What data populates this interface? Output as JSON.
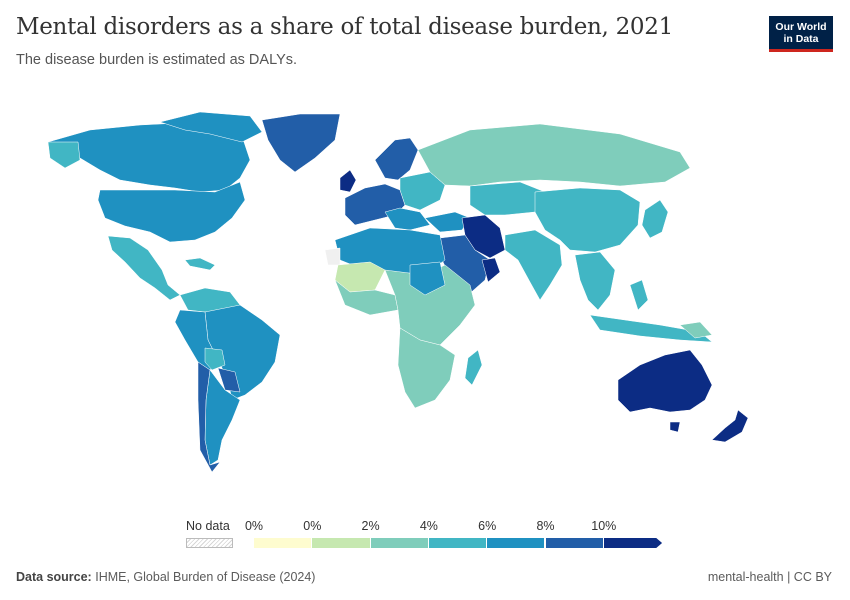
{
  "header": {
    "title": "Mental disorders as a share of total disease burden, 2021",
    "subtitle": "The disease burden is estimated as DALYs."
  },
  "logo": {
    "line1": "Our World",
    "line2": "in Data"
  },
  "legend": {
    "no_data_label": "No data",
    "ticks": [
      "0%",
      "0%",
      "2%",
      "4%",
      "6%",
      "8%",
      "10%"
    ],
    "colors": [
      "#fefccf",
      "#c6e8b0",
      "#7fcdbb",
      "#41b6c4",
      "#1f91c1",
      "#225ea8",
      "#0c2c84"
    ]
  },
  "footer": {
    "source_label": "Data source:",
    "source_text": "IHME, Global Burden of Disease (2024)",
    "right_text": "mental-health | CC BY"
  },
  "map_regions": [
    {
      "name": "Canada / USA",
      "color": "#1f91c1"
    },
    {
      "name": "Greenland",
      "color": "#225ea8"
    },
    {
      "name": "Mexico / Central America",
      "color": "#41b6c4"
    },
    {
      "name": "Brazil / South America",
      "color": "#1f91c1"
    },
    {
      "name": "Western Europe",
      "color": "#225ea8"
    },
    {
      "name": "Russia",
      "color": "#7fcdbb"
    },
    {
      "name": "Iran",
      "color": "#0c2c84"
    },
    {
      "name": "China / Central Asia",
      "color": "#41b6c4"
    },
    {
      "name": "North Africa",
      "color": "#1f91c1"
    },
    {
      "name": "Sahel",
      "color": "#c6e8b0"
    },
    {
      "name": "Sub-Saharan Africa",
      "color": "#7fcdbb"
    },
    {
      "name": "Australia",
      "color": "#0c2c84"
    },
    {
      "name": "New Zealand",
      "color": "#0c2c84"
    },
    {
      "name": "Southeast Asia",
      "color": "#41b6c4"
    }
  ]
}
